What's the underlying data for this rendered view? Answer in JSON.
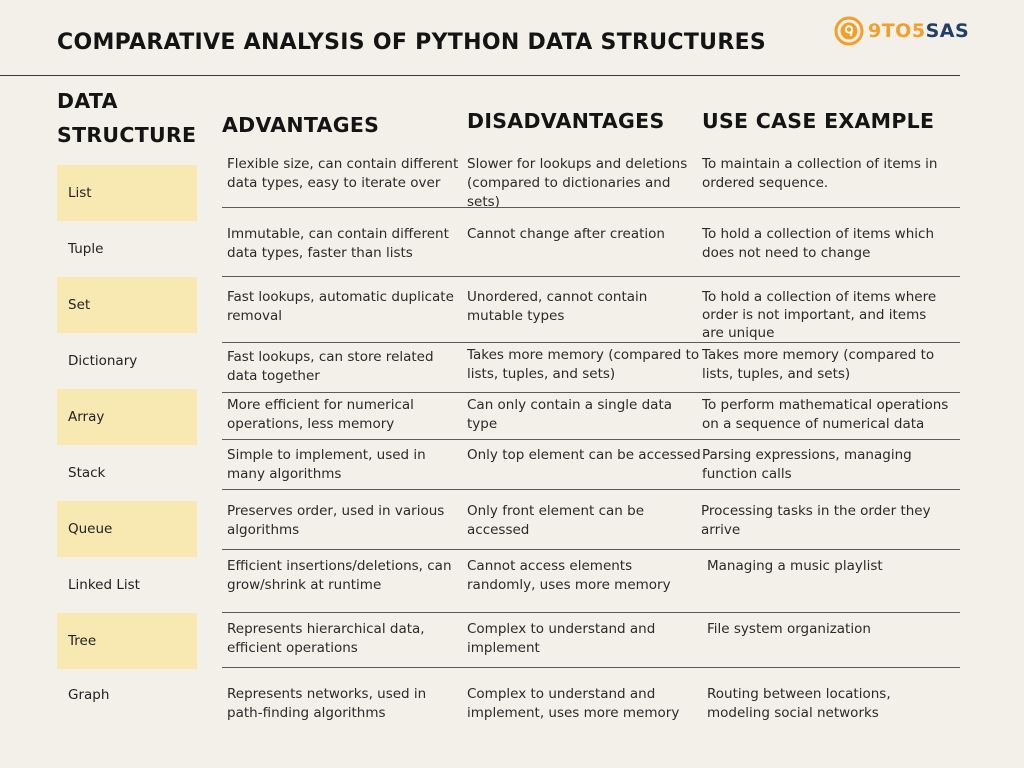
{
  "title": "COMPARATIVE ANALYSIS OF PYTHON DATA STRUCTURES",
  "logo": {
    "part1": "9TO5",
    "part2": "SAS",
    "accent": "#f0a02c",
    "brand": "#1f3f66"
  },
  "headers": {
    "data_structure_line1": "DATA",
    "data_structure_line2": "STRUCTURE",
    "advantages": "ADVANTAGES",
    "disadvantages": "DISADVANTAGES",
    "use_case": "USE CASE EXAMPLE"
  },
  "rows": [
    {
      "name": "List",
      "adv": "Flexible size, can contain different data types, easy to iterate over",
      "dis": "Slower for lookups and deletions (compared to dictionaries and sets)",
      "use": "To maintain a collection of items in ordered sequence."
    },
    {
      "name": "Tuple",
      "adv": "Immutable, can contain different data types, faster than lists",
      "dis": "Cannot change after creation",
      "use": "To hold a collection of items which does not need to change"
    },
    {
      "name": "Set",
      "adv": "Fast lookups, automatic duplicate removal",
      "dis": "Unordered, cannot contain mutable types",
      "use": "To hold a collection of items where order is not important, and items are unique"
    },
    {
      "name": "Dictionary",
      "adv": "Fast lookups, can store related data together",
      "dis": "Takes more memory (compared to lists, tuples, and sets)",
      "use": "Takes more memory (compared to lists, tuples, and sets)"
    },
    {
      "name": "Array",
      "adv": "More efficient for numerical operations, less memory",
      "dis": "Can only contain a single data type",
      "use": "To perform mathematical operations on a sequence of numerical data"
    },
    {
      "name": "Stack",
      "adv": "Simple to implement, used in many algorithms",
      "dis": "Only top element can be accessed",
      "use": "Parsing expressions, managing function calls"
    },
    {
      "name": "Queue",
      "adv": "Preserves order, used in various algorithms",
      "dis": "Only front element can be accessed",
      "use": "Processing tasks in the order they arrive"
    },
    {
      "name": "Linked List",
      "adv": "Efficient insertions/deletions, can grow/shrink at runtime",
      "dis": "Cannot access elements randomly, uses more memory",
      "use": "Managing a music playlist"
    },
    {
      "name": "Tree",
      "adv": "Represents hierarchical data, efficient operations",
      "dis": "Complex to understand and implement",
      "use": "File system organization"
    },
    {
      "name": "Graph",
      "adv": "Represents networks, used in path-finding algorithms",
      "dis": "Complex to understand and implement, uses more memory",
      "use": "Routing between locations, modeling social networks"
    }
  ]
}
